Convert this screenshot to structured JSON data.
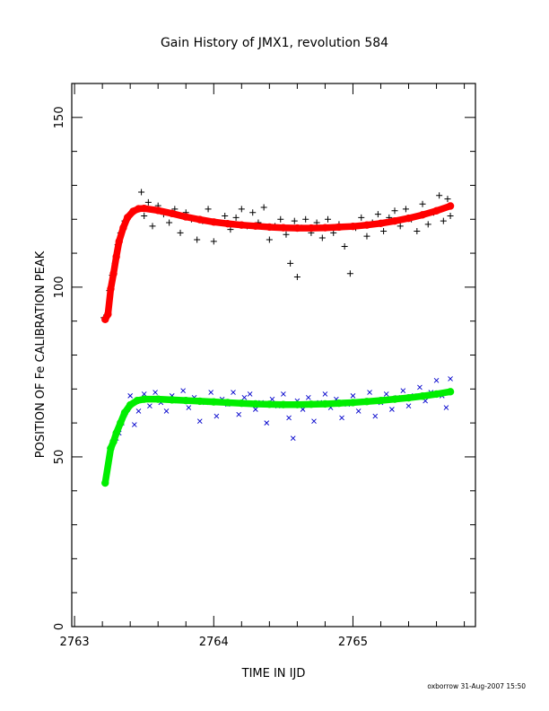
{
  "chart_data": {
    "type": "scatter",
    "title": "Gain History of JMX1, revolution 584",
    "xlabel": "TIME IN IJD",
    "ylabel": "POSITION OF Fe CALIBRATION PEAK",
    "xlim": [
      2762.98,
      2765.88
    ],
    "ylim": [
      0,
      160
    ],
    "x_ticks": [
      "2763",
      "2764",
      "2765"
    ],
    "x_tick_values": [
      2763,
      2764,
      2765
    ],
    "y_ticks": [
      "0",
      "50",
      "100",
      "150"
    ],
    "y_tick_values": [
      0,
      50,
      100,
      150
    ],
    "grid": false,
    "legend": "none",
    "series": [
      {
        "marker": "plus",
        "color": "#000000",
        "points": [
          [
            2763.21,
            91.0
          ],
          [
            2763.23,
            91.5
          ],
          [
            2763.25,
            99.0
          ],
          [
            2763.27,
            103.5
          ],
          [
            2763.29,
            107.0
          ],
          [
            2763.31,
            112.5
          ],
          [
            2763.33,
            116.0
          ],
          [
            2763.36,
            119.5
          ],
          [
            2763.39,
            121.0
          ],
          [
            2763.42,
            122.5
          ],
          [
            2763.45,
            123.0
          ],
          [
            2763.48,
            128.0
          ],
          [
            2763.5,
            121.0
          ],
          [
            2763.53,
            125.0
          ],
          [
            2763.56,
            118.0
          ],
          [
            2763.6,
            124.0
          ],
          [
            2763.64,
            121.5
          ],
          [
            2763.68,
            119.0
          ],
          [
            2763.72,
            123.0
          ],
          [
            2763.76,
            116.0
          ],
          [
            2763.8,
            122.0
          ],
          [
            2763.84,
            120.0
          ],
          [
            2763.88,
            114.0
          ],
          [
            2763.92,
            119.5
          ],
          [
            2763.96,
            123.0
          ],
          [
            2764.0,
            113.5
          ],
          [
            2764.04,
            119.0
          ],
          [
            2764.08,
            121.0
          ],
          [
            2764.12,
            117.0
          ],
          [
            2764.16,
            120.5
          ],
          [
            2764.2,
            123.0
          ],
          [
            2764.24,
            118.0
          ],
          [
            2764.28,
            122.0
          ],
          [
            2764.32,
            119.0
          ],
          [
            2764.36,
            123.5
          ],
          [
            2764.4,
            114.0
          ],
          [
            2764.44,
            118.0
          ],
          [
            2764.48,
            120.0
          ],
          [
            2764.52,
            115.5
          ],
          [
            2764.55,
            107.0
          ],
          [
            2764.58,
            119.5
          ],
          [
            2764.6,
            103.0
          ],
          [
            2764.63,
            117.5
          ],
          [
            2764.66,
            120.0
          ],
          [
            2764.7,
            116.0
          ],
          [
            2764.74,
            119.0
          ],
          [
            2764.78,
            114.5
          ],
          [
            2764.82,
            120.0
          ],
          [
            2764.86,
            116.0
          ],
          [
            2764.9,
            118.5
          ],
          [
            2764.94,
            112.0
          ],
          [
            2764.98,
            104.0
          ],
          [
            2765.02,
            117.5
          ],
          [
            2765.06,
            120.5
          ],
          [
            2765.1,
            115.0
          ],
          [
            2765.14,
            119.0
          ],
          [
            2765.18,
            121.5
          ],
          [
            2765.22,
            116.5
          ],
          [
            2765.26,
            120.5
          ],
          [
            2765.3,
            122.5
          ],
          [
            2765.34,
            118.0
          ],
          [
            2765.38,
            123.0
          ],
          [
            2765.42,
            120.0
          ],
          [
            2765.46,
            116.5
          ],
          [
            2765.5,
            124.5
          ],
          [
            2765.54,
            118.5
          ],
          [
            2765.58,
            122.0
          ],
          [
            2765.62,
            127.0
          ],
          [
            2765.65,
            119.5
          ],
          [
            2765.68,
            126.0
          ],
          [
            2765.7,
            121.0
          ]
        ]
      },
      {
        "marker": "filled-circle",
        "color": "#ff0000",
        "points": [
          [
            2763.22,
            90.5
          ],
          [
            2763.24,
            92.0
          ],
          [
            2763.26,
            99.5
          ],
          [
            2763.28,
            104.0
          ],
          [
            2763.3,
            109.0
          ],
          [
            2763.32,
            113.5
          ],
          [
            2763.35,
            117.5
          ],
          [
            2763.38,
            120.5
          ],
          [
            2763.42,
            122.3
          ],
          [
            2763.46,
            123.1
          ],
          [
            2763.5,
            123.2
          ],
          [
            2763.6,
            122.6
          ],
          [
            2763.7,
            121.7
          ],
          [
            2763.8,
            120.7
          ],
          [
            2763.9,
            119.9
          ],
          [
            2764.0,
            119.2
          ],
          [
            2764.1,
            118.7
          ],
          [
            2764.2,
            118.3
          ],
          [
            2764.3,
            118.0
          ],
          [
            2764.4,
            117.7
          ],
          [
            2764.5,
            117.5
          ],
          [
            2764.6,
            117.4
          ],
          [
            2764.7,
            117.4
          ],
          [
            2764.8,
            117.5
          ],
          [
            2764.9,
            117.7
          ],
          [
            2765.0,
            117.9
          ],
          [
            2765.1,
            118.3
          ],
          [
            2765.2,
            118.8
          ],
          [
            2765.3,
            119.5
          ],
          [
            2765.4,
            120.3
          ],
          [
            2765.5,
            121.3
          ],
          [
            2765.6,
            122.5
          ],
          [
            2765.7,
            123.9
          ]
        ]
      },
      {
        "marker": "x",
        "color": "#0000cc",
        "points": [
          [
            2763.22,
            42.5
          ],
          [
            2763.25,
            52.0
          ],
          [
            2763.27,
            53.5
          ],
          [
            2763.3,
            55.5
          ],
          [
            2763.32,
            57.0
          ],
          [
            2763.34,
            60.0
          ],
          [
            2763.36,
            62.5
          ],
          [
            2763.38,
            64.0
          ],
          [
            2763.4,
            68.0
          ],
          [
            2763.43,
            59.5
          ],
          [
            2763.46,
            63.5
          ],
          [
            2763.5,
            68.5
          ],
          [
            2763.54,
            65.0
          ],
          [
            2763.58,
            69.0
          ],
          [
            2763.62,
            66.0
          ],
          [
            2763.66,
            63.5
          ],
          [
            2763.7,
            68.0
          ],
          [
            2763.74,
            66.5
          ],
          [
            2763.78,
            69.5
          ],
          [
            2763.82,
            64.5
          ],
          [
            2763.86,
            67.5
          ],
          [
            2763.9,
            60.5
          ],
          [
            2763.94,
            66.0
          ],
          [
            2763.98,
            69.0
          ],
          [
            2764.02,
            62.0
          ],
          [
            2764.06,
            67.0
          ],
          [
            2764.1,
            65.5
          ],
          [
            2764.14,
            69.0
          ],
          [
            2764.18,
            62.5
          ],
          [
            2764.22,
            67.5
          ],
          [
            2764.26,
            68.5
          ],
          [
            2764.3,
            64.0
          ],
          [
            2764.34,
            66.0
          ],
          [
            2764.38,
            60.0
          ],
          [
            2764.42,
            67.0
          ],
          [
            2764.46,
            65.0
          ],
          [
            2764.5,
            68.5
          ],
          [
            2764.54,
            61.5
          ],
          [
            2764.57,
            55.5
          ],
          [
            2764.6,
            66.5
          ],
          [
            2764.64,
            64.0
          ],
          [
            2764.68,
            67.5
          ],
          [
            2764.72,
            60.5
          ],
          [
            2764.76,
            66.0
          ],
          [
            2764.8,
            68.5
          ],
          [
            2764.84,
            64.5
          ],
          [
            2764.88,
            67.0
          ],
          [
            2764.92,
            61.5
          ],
          [
            2764.96,
            65.5
          ],
          [
            2765.0,
            68.0
          ],
          [
            2765.04,
            63.5
          ],
          [
            2765.08,
            66.5
          ],
          [
            2765.12,
            69.0
          ],
          [
            2765.16,
            62.0
          ],
          [
            2765.2,
            66.0
          ],
          [
            2765.24,
            68.5
          ],
          [
            2765.28,
            64.0
          ],
          [
            2765.32,
            67.5
          ],
          [
            2765.36,
            69.5
          ],
          [
            2765.4,
            65.0
          ],
          [
            2765.44,
            68.0
          ],
          [
            2765.48,
            70.5
          ],
          [
            2765.52,
            66.5
          ],
          [
            2765.56,
            69.0
          ],
          [
            2765.6,
            72.5
          ],
          [
            2765.64,
            68.0
          ],
          [
            2765.67,
            64.5
          ],
          [
            2765.7,
            73.0
          ]
        ]
      },
      {
        "marker": "filled-circle",
        "color": "#00ee00",
        "points": [
          [
            2763.22,
            42.3
          ],
          [
            2763.26,
            52.5
          ],
          [
            2763.28,
            54.5
          ],
          [
            2763.3,
            57.0
          ],
          [
            2763.33,
            60.0
          ],
          [
            2763.36,
            63.0
          ],
          [
            2763.4,
            65.3
          ],
          [
            2763.45,
            66.6
          ],
          [
            2763.5,
            67.0
          ],
          [
            2763.6,
            67.0
          ],
          [
            2763.7,
            66.8
          ],
          [
            2763.8,
            66.6
          ],
          [
            2763.9,
            66.4
          ],
          [
            2764.0,
            66.2
          ],
          [
            2764.1,
            66.0
          ],
          [
            2764.2,
            65.8
          ],
          [
            2764.3,
            65.6
          ],
          [
            2764.4,
            65.5
          ],
          [
            2764.5,
            65.4
          ],
          [
            2764.6,
            65.4
          ],
          [
            2764.7,
            65.5
          ],
          [
            2764.8,
            65.6
          ],
          [
            2764.9,
            65.8
          ],
          [
            2765.0,
            66.0
          ],
          [
            2765.1,
            66.3
          ],
          [
            2765.2,
            66.6
          ],
          [
            2765.3,
            67.0
          ],
          [
            2765.4,
            67.4
          ],
          [
            2765.5,
            67.9
          ],
          [
            2765.6,
            68.5
          ],
          [
            2765.7,
            69.2
          ]
        ]
      }
    ]
  },
  "footer": {
    "credit": "oxborrow 31-Aug-2007 15:50"
  }
}
